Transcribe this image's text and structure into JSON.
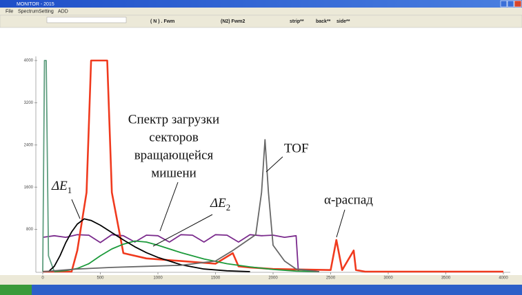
{
  "window": {
    "title": "MONITOR - 2015",
    "menu": [
      "File",
      "Spectrum",
      "Setting",
      "ADD"
    ],
    "toolbar": [
      "( N ) . Fwm",
      "(N2) Fwm2",
      "strip**",
      "back**",
      "side**"
    ]
  },
  "chart_data": {
    "type": "line",
    "xlim": [
      0,
      4000
    ],
    "ylim": [
      0,
      4000
    ],
    "xticks": [
      0,
      500,
      1000,
      1500,
      2000,
      2500,
      3000,
      3500,
      4000
    ],
    "yticks": [
      800,
      1600,
      2400,
      3200,
      4000
    ],
    "annotations": [
      {
        "lines": [
          "Спектр загрузки",
          "секторов",
          "вращающейся",
          "мишени"
        ]
      },
      {
        "text": "TOF"
      },
      {
        "text": "ΔE",
        "sub": "1"
      },
      {
        "text": "ΔE",
        "sub": "2"
      },
      {
        "text": "α-распад"
      }
    ],
    "series": [
      {
        "color": "#7a2a8c",
        "x": [
          0,
          100,
          200,
          300,
          400,
          500,
          600,
          700,
          800,
          900,
          1000,
          1100,
          1200,
          1300,
          1400,
          1500,
          1600,
          1700,
          1800,
          1900,
          2000,
          2100,
          2200,
          2220
        ],
        "values": [
          650,
          680,
          650,
          700,
          690,
          550,
          700,
          680,
          560,
          690,
          680,
          560,
          700,
          690,
          560,
          700,
          690,
          560,
          700,
          680,
          690,
          650,
          680,
          0
        ]
      },
      {
        "color": "#f03a1e",
        "x": [
          0,
          250,
          300,
          380,
          420,
          560,
          600,
          700,
          900,
          1200,
          1500,
          1650,
          1700,
          1800,
          2000,
          2500,
          2550,
          2600,
          2700,
          2720,
          2800,
          4000
        ],
        "values": [
          0,
          0,
          400,
          1500,
          4000,
          4000,
          1500,
          350,
          250,
          200,
          150,
          350,
          100,
          80,
          50,
          30,
          600,
          30,
          400,
          30,
          0,
          0
        ]
      },
      {
        "color": "#1b9a3a",
        "x": [
          100,
          200,
          300,
          400,
          500,
          600,
          700,
          800,
          900,
          1000,
          1200,
          1400,
          1600,
          1800,
          2000,
          2200,
          2400
        ],
        "values": [
          0,
          20,
          60,
          150,
          300,
          430,
          520,
          580,
          560,
          500,
          360,
          240,
          150,
          90,
          40,
          10,
          0
        ]
      },
      {
        "color": "#5f9e7f",
        "x": [
          0,
          15,
          30,
          50,
          100
        ],
        "values": [
          0,
          4000,
          4000,
          300,
          0
        ]
      },
      {
        "color": "#000000",
        "x": [
          50,
          100,
          150,
          200,
          250,
          300,
          360,
          420,
          500,
          600,
          700,
          800,
          900,
          1000,
          1200,
          1400,
          1600,
          1800
        ],
        "values": [
          0,
          100,
          300,
          550,
          750,
          900,
          1000,
          970,
          880,
          740,
          600,
          470,
          360,
          270,
          130,
          50,
          15,
          0
        ]
      },
      {
        "color": "#666666",
        "x": [
          0,
          300,
          600,
          900,
          1200,
          1500,
          1650,
          1750,
          1850,
          1900,
          1930,
          1960,
          2000,
          2100,
          2200,
          2400
        ],
        "values": [
          0,
          50,
          80,
          100,
          120,
          200,
          400,
          550,
          700,
          1500,
          2500,
          1500,
          500,
          200,
          50,
          0
        ]
      }
    ]
  }
}
